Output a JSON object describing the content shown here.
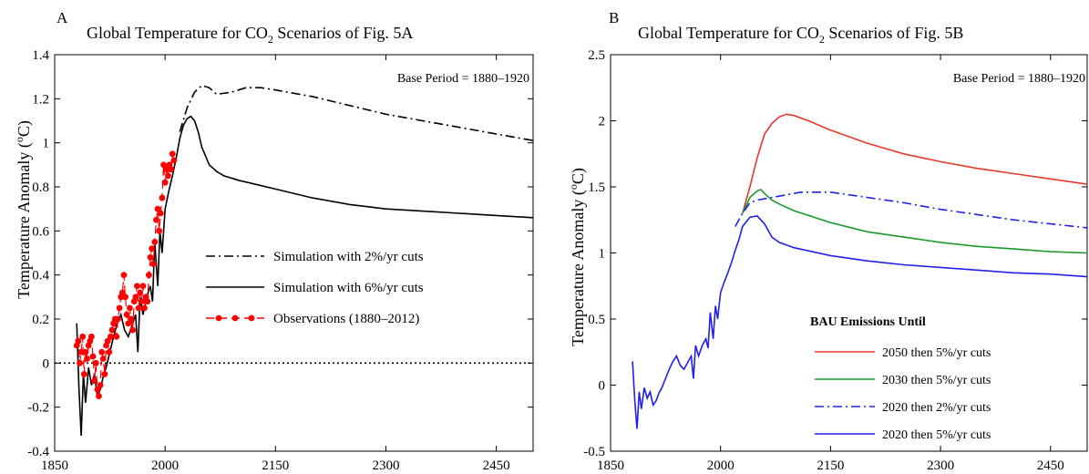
{
  "chart_data": [
    {
      "panel": "A",
      "type": "line",
      "title_pre": "Global Temperature for CO",
      "title_sub": "2",
      "title_post": " Scenarios of Fig. 5A",
      "ylabel_pre": "Temperature Anomaly (",
      "ylabel_sup": "o",
      "ylabel_post": "C)",
      "base_period": "Base Period = 1880–1920",
      "xlim": [
        1850,
        2500
      ],
      "ylim": [
        -0.4,
        1.4
      ],
      "xticks": [
        1850,
        2000,
        2150,
        2300,
        2450
      ],
      "yticks": [
        -0.4,
        -0.2,
        0,
        0.2,
        0.4,
        0.6,
        0.8,
        1,
        1.2,
        1.4
      ],
      "ytick_labels": [
        "-0.4",
        "-0.2",
        "0",
        "0.2",
        "0.4",
        "0.6",
        "0.8",
        "1",
        "1.2",
        "1.4"
      ],
      "zero_line": true,
      "series": [
        {
          "name": "Simulation with 2%/yr cuts",
          "color": "#000000",
          "dash": "dashdot",
          "x": [
            2020,
            2030,
            2040,
            2050,
            2060,
            2070,
            2090,
            2110,
            2130,
            2150,
            2200,
            2250,
            2300,
            2350,
            2400,
            2450,
            2500
          ],
          "y": [
            1.05,
            1.16,
            1.23,
            1.26,
            1.25,
            1.22,
            1.23,
            1.25,
            1.25,
            1.24,
            1.21,
            1.17,
            1.13,
            1.1,
            1.07,
            1.04,
            1.01
          ]
        },
        {
          "name": "Simulation with 6%/yr cuts",
          "color": "#000000",
          "dash": "solid",
          "x": [
            1880,
            1883,
            1886,
            1889,
            1892,
            1896,
            1900,
            1904,
            1908,
            1912,
            1916,
            1920,
            1925,
            1930,
            1935,
            1940,
            1945,
            1950,
            1955,
            1960,
            1963,
            1966,
            1970,
            1975,
            1980,
            1983,
            1986,
            1990,
            1993,
            1996,
            2000,
            2005,
            2010,
            2015,
            2020,
            2025,
            2030,
            2035,
            2040,
            2045,
            2050,
            2060,
            2070,
            2080,
            2100,
            2150,
            2200,
            2250,
            2300,
            2350,
            2400,
            2450,
            2500
          ],
          "y": [
            0.18,
            -0.12,
            -0.33,
            -0.05,
            -0.18,
            -0.02,
            -0.1,
            -0.05,
            -0.15,
            -0.12,
            -0.06,
            -0.02,
            0.05,
            0.12,
            0.18,
            0.22,
            0.15,
            0.12,
            0.17,
            0.22,
            0.05,
            0.3,
            0.22,
            0.3,
            0.35,
            0.28,
            0.55,
            0.35,
            0.6,
            0.5,
            0.7,
            0.78,
            0.85,
            0.93,
            1.02,
            1.08,
            1.11,
            1.12,
            1.1,
            1.05,
            0.98,
            0.9,
            0.87,
            0.85,
            0.83,
            0.79,
            0.75,
            0.72,
            0.7,
            0.69,
            0.68,
            0.67,
            0.66
          ]
        },
        {
          "name": "Observations (1880–2012)",
          "color": "#ff0000",
          "dash": "dashed",
          "markers": true,
          "x": [
            1880,
            1882,
            1884,
            1886,
            1888,
            1890,
            1892,
            1894,
            1896,
            1898,
            1900,
            1902,
            1904,
            1906,
            1908,
            1910,
            1912,
            1914,
            1916,
            1918,
            1920,
            1922,
            1924,
            1926,
            1928,
            1930,
            1932,
            1934,
            1936,
            1938,
            1940,
            1942,
            1944,
            1946,
            1948,
            1950,
            1952,
            1954,
            1956,
            1958,
            1960,
            1962,
            1964,
            1966,
            1968,
            1970,
            1972,
            1974,
            1976,
            1978,
            1980,
            1982,
            1984,
            1986,
            1988,
            1990,
            1992,
            1994,
            1996,
            1998,
            2000,
            2002,
            2004,
            2006,
            2008,
            2010,
            2012
          ],
          "y": [
            0.08,
            0.1,
            0.0,
            0.05,
            0.12,
            -0.05,
            0.05,
            0.02,
            0.08,
            0.1,
            0.12,
            0.03,
            -0.08,
            0.0,
            -0.12,
            -0.15,
            -0.1,
            0.05,
            0.02,
            -0.05,
            0.08,
            0.1,
            0.05,
            0.12,
            0.15,
            0.18,
            0.2,
            0.12,
            0.2,
            0.25,
            0.3,
            0.32,
            0.4,
            0.3,
            0.22,
            0.18,
            0.25,
            0.2,
            0.15,
            0.28,
            0.3,
            0.35,
            0.25,
            0.32,
            0.28,
            0.35,
            0.25,
            0.3,
            0.28,
            0.4,
            0.48,
            0.52,
            0.45,
            0.55,
            0.65,
            0.7,
            0.6,
            0.68,
            0.75,
            0.9,
            0.82,
            0.88,
            0.85,
            0.9,
            0.88,
            0.95,
            0.92
          ]
        }
      ],
      "legend": {
        "placement": "center-right"
      }
    },
    {
      "panel": "B",
      "type": "line",
      "title_pre": "Global Temperature for CO",
      "title_sub": "2",
      "title_post": " Scenarios of Fig. 5B",
      "ylabel_pre": "Temperature Anomaly (",
      "ylabel_sup": "o",
      "ylabel_post": "C)",
      "base_period": "Base Period = 1880–1920",
      "xlim": [
        1850,
        2500
      ],
      "ylim": [
        -0.5,
        2.5
      ],
      "xticks": [
        1850,
        2000,
        2150,
        2300,
        2450
      ],
      "yticks": [
        -0.5,
        0,
        0.5,
        1,
        1.5,
        2,
        2.5
      ],
      "ytick_labels": [
        "-0.5",
        "0",
        "0.5",
        "1",
        "1.5",
        "2",
        "2.5"
      ],
      "legend_title": "BAU Emissions Until",
      "series": [
        {
          "name": "2050 then 5%/yr cuts",
          "color": "#e8382a",
          "dash": "solid",
          "x": [
            2030,
            2040,
            2050,
            2060,
            2070,
            2080,
            2090,
            2100,
            2120,
            2150,
            2200,
            2250,
            2300,
            2350,
            2400,
            2450,
            2500
          ],
          "y": [
            1.3,
            1.5,
            1.72,
            1.9,
            1.98,
            2.03,
            2.05,
            2.04,
            2.0,
            1.93,
            1.83,
            1.75,
            1.69,
            1.64,
            1.6,
            1.56,
            1.52
          ]
        },
        {
          "name": "2030 then 5%/yr cuts",
          "color": "#1a9a2a",
          "dash": "solid",
          "x": [
            2030,
            2040,
            2050,
            2055,
            2060,
            2070,
            2080,
            2100,
            2150,
            2200,
            2250,
            2300,
            2350,
            2400,
            2450,
            2500
          ],
          "y": [
            1.3,
            1.42,
            1.47,
            1.48,
            1.45,
            1.4,
            1.37,
            1.32,
            1.23,
            1.16,
            1.12,
            1.08,
            1.05,
            1.03,
            1.01,
            1.0
          ]
        },
        {
          "name": "2020 then 2%/yr cuts",
          "color": "#2020ee",
          "dash": "dashdot",
          "x": [
            2020,
            2030,
            2040,
            2050,
            2070,
            2090,
            2110,
            2130,
            2150,
            2200,
            2250,
            2300,
            2350,
            2400,
            2450,
            2500
          ],
          "y": [
            1.2,
            1.3,
            1.38,
            1.4,
            1.42,
            1.44,
            1.46,
            1.46,
            1.46,
            1.42,
            1.38,
            1.33,
            1.29,
            1.25,
            1.22,
            1.19
          ]
        },
        {
          "name": "2020 then 5%/yr cuts",
          "color": "#2020ee",
          "dash": "solid",
          "x": [
            1880,
            1883,
            1886,
            1889,
            1892,
            1896,
            1900,
            1904,
            1908,
            1912,
            1916,
            1920,
            1925,
            1930,
            1935,
            1940,
            1945,
            1950,
            1955,
            1960,
            1963,
            1966,
            1970,
            1975,
            1980,
            1983,
            1986,
            1990,
            1993,
            1996,
            2000,
            2005,
            2010,
            2015,
            2020,
            2025,
            2030,
            2040,
            2050,
            2060,
            2070,
            2080,
            2100,
            2150,
            2200,
            2250,
            2300,
            2350,
            2400,
            2450,
            2500
          ],
          "y": [
            0.18,
            -0.12,
            -0.33,
            -0.05,
            -0.18,
            -0.02,
            -0.1,
            -0.05,
            -0.15,
            -0.12,
            -0.06,
            -0.02,
            0.05,
            0.12,
            0.18,
            0.22,
            0.15,
            0.12,
            0.17,
            0.22,
            0.05,
            0.3,
            0.22,
            0.3,
            0.35,
            0.28,
            0.55,
            0.35,
            0.6,
            0.5,
            0.7,
            0.78,
            0.85,
            0.93,
            1.02,
            1.1,
            1.2,
            1.27,
            1.28,
            1.22,
            1.12,
            1.08,
            1.04,
            0.98,
            0.94,
            0.91,
            0.89,
            0.87,
            0.85,
            0.84,
            0.82
          ]
        }
      ],
      "legend": {
        "placement": "bottom-right"
      }
    }
  ]
}
